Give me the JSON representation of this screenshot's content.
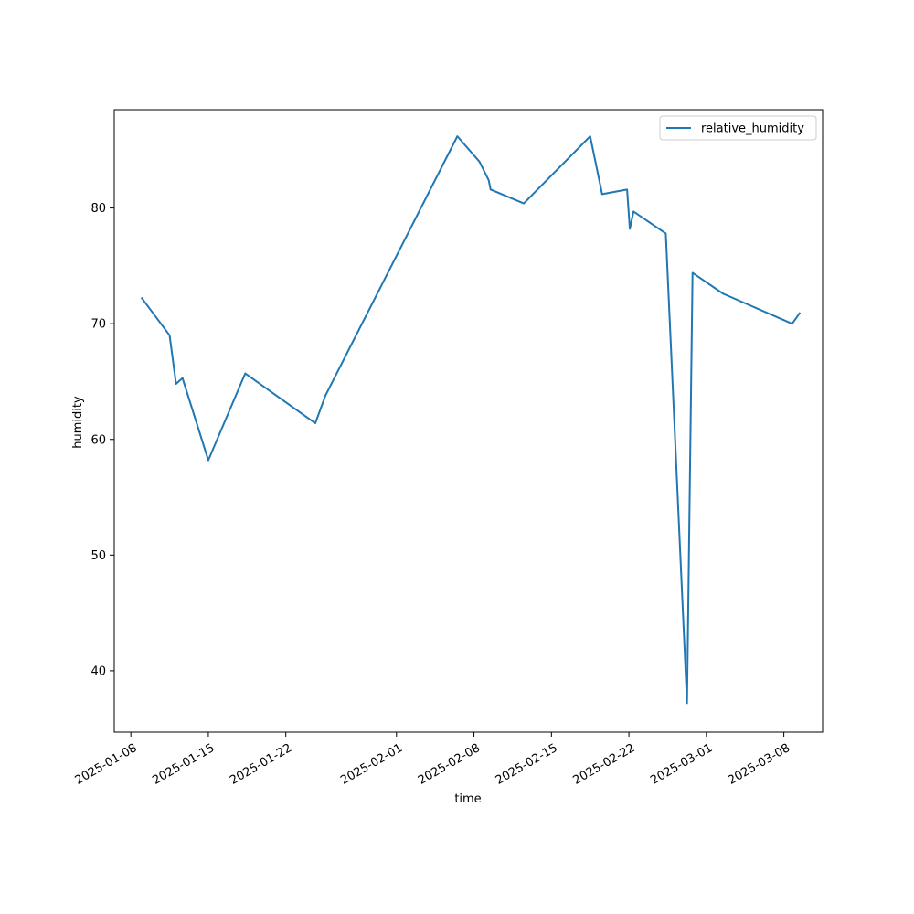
{
  "chart_data": {
    "type": "line",
    "xlabel": "time",
    "ylabel": "humidity",
    "x_axis_type": "date",
    "xlim": [
      "2025-01-06T12:00",
      "2025-03-11T12:00"
    ],
    "ylim": [
      34.7,
      88.5
    ],
    "x_ticks": [
      "2025-01-08",
      "2025-01-15",
      "2025-01-22",
      "2025-02-01",
      "2025-02-08",
      "2025-02-15",
      "2025-02-22",
      "2025-03-01",
      "2025-03-08"
    ],
    "y_ticks": [
      40,
      50,
      60,
      70,
      80
    ],
    "legend_position": "top-right",
    "grid": false,
    "series": [
      {
        "name": "relative_humidity",
        "color": "#1f77b4",
        "points": [
          {
            "x": "2025-01-09T00:00",
            "y": 72.2
          },
          {
            "x": "2025-01-11T12:00",
            "y": 69.0
          },
          {
            "x": "2025-01-12T02:00",
            "y": 64.8
          },
          {
            "x": "2025-01-12T16:00",
            "y": 65.3
          },
          {
            "x": "2025-01-15T00:00",
            "y": 58.2
          },
          {
            "x": "2025-01-18T08:00",
            "y": 65.7
          },
          {
            "x": "2025-01-24T16:00",
            "y": 61.4
          },
          {
            "x": "2025-01-25T14:00",
            "y": 63.8
          },
          {
            "x": "2025-02-06T12:00",
            "y": 86.2
          },
          {
            "x": "2025-02-08T12:00",
            "y": 84.0
          },
          {
            "x": "2025-02-09T08:00",
            "y": 82.4
          },
          {
            "x": "2025-02-09T12:00",
            "y": 81.6
          },
          {
            "x": "2025-02-12T12:00",
            "y": 80.4
          },
          {
            "x": "2025-02-18T12:00",
            "y": 86.2
          },
          {
            "x": "2025-02-19T14:00",
            "y": 81.2
          },
          {
            "x": "2025-02-21T20:00",
            "y": 81.6
          },
          {
            "x": "2025-02-22T02:00",
            "y": 78.2
          },
          {
            "x": "2025-02-22T10:00",
            "y": 79.7
          },
          {
            "x": "2025-02-25T08:00",
            "y": 77.8
          },
          {
            "x": "2025-02-27T06:00",
            "y": 37.2
          },
          {
            "x": "2025-02-27T18:00",
            "y": 74.4
          },
          {
            "x": "2025-03-02T12:00",
            "y": 72.6
          },
          {
            "x": "2025-03-08T18:00",
            "y": 70.0
          },
          {
            "x": "2025-03-09T10:00",
            "y": 70.9
          }
        ]
      }
    ]
  }
}
